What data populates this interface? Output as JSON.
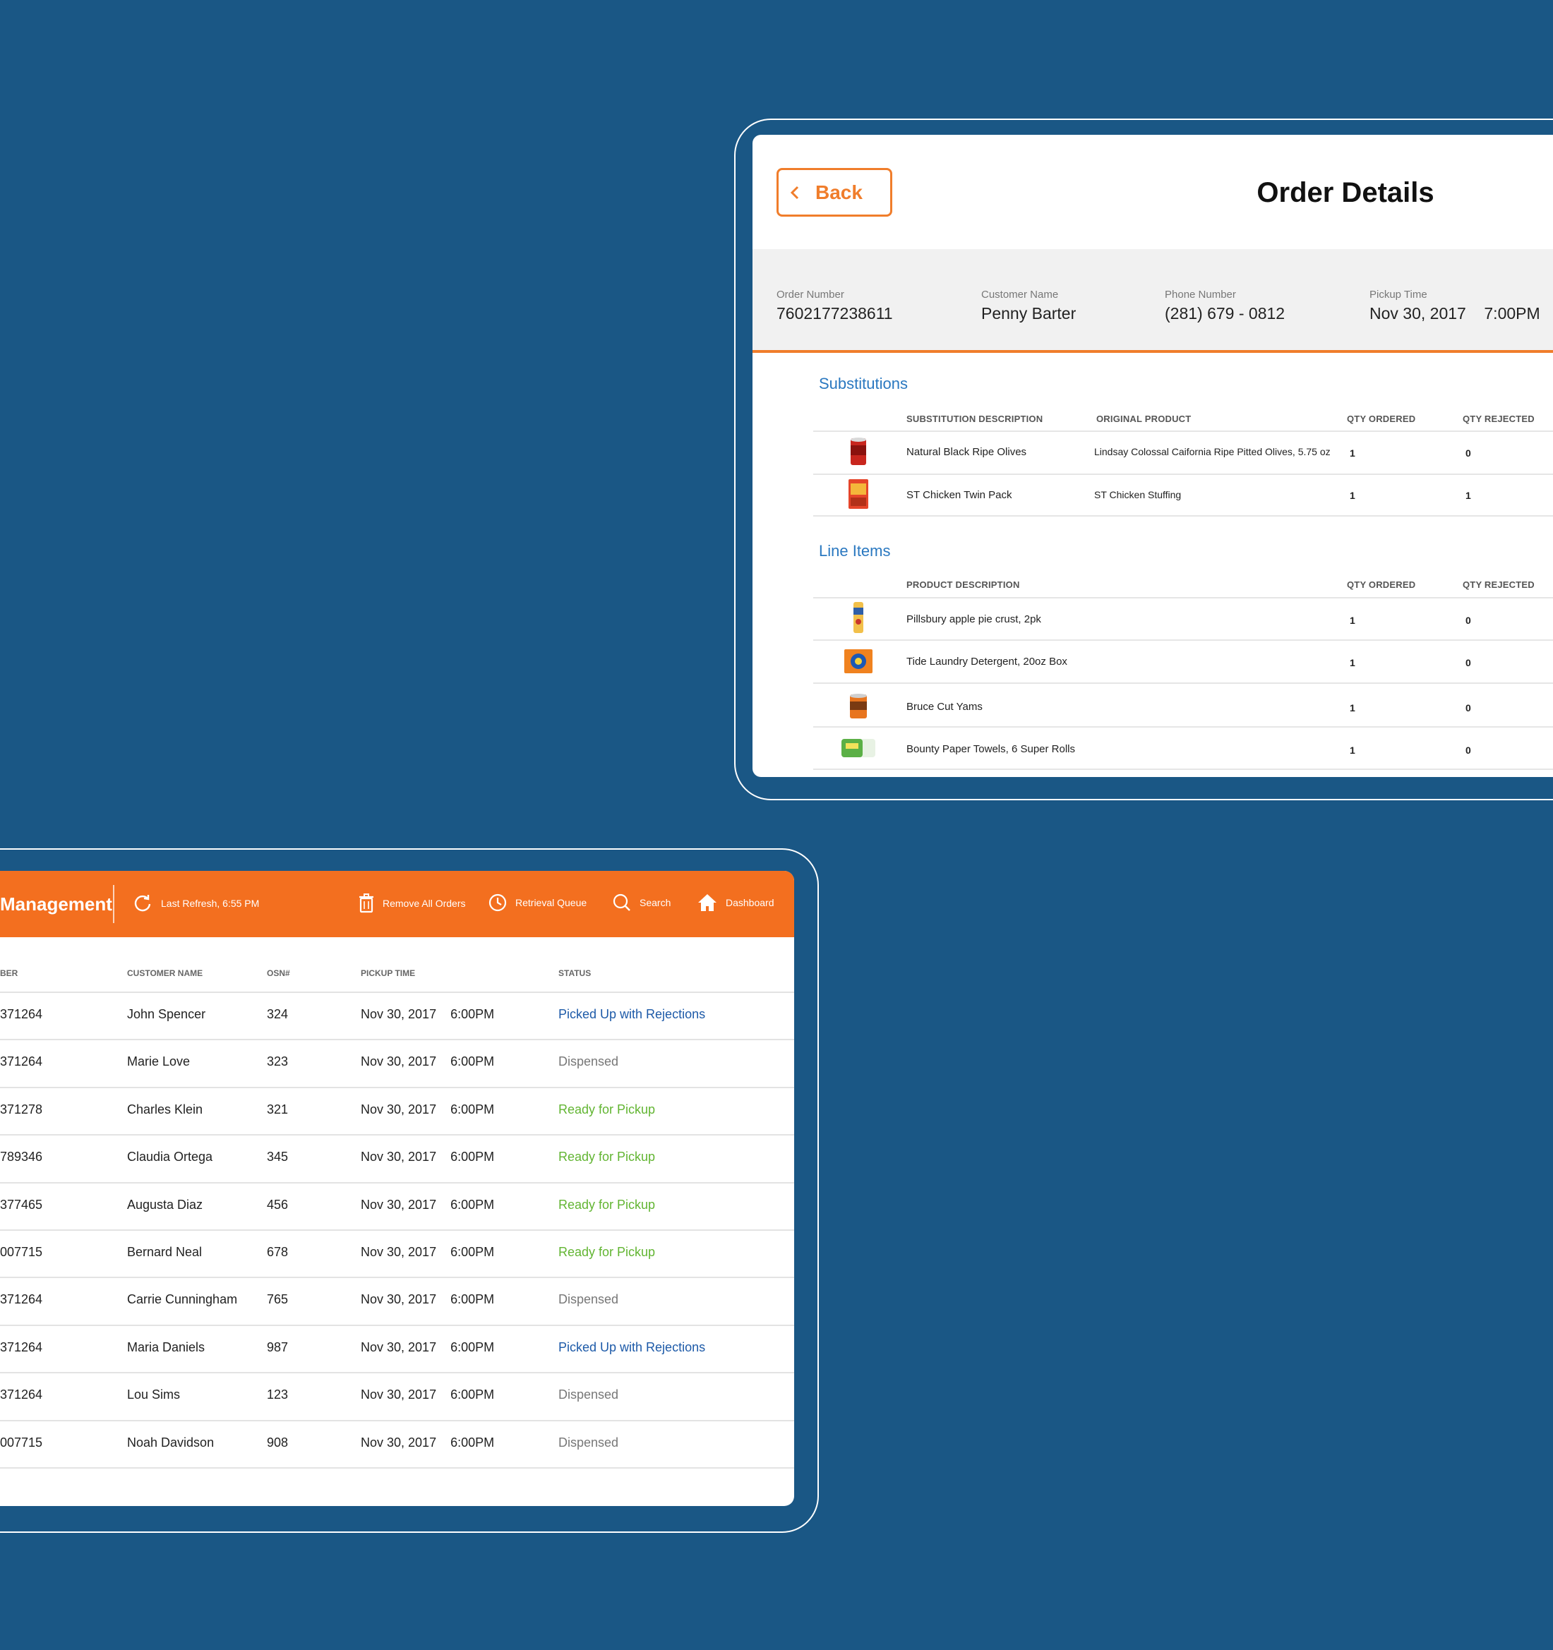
{
  "order_details": {
    "back_label": "Back",
    "title": "Order Details",
    "info": {
      "order_number_label": "Order Number",
      "order_number": "7602177238611",
      "customer_name_label": "Customer Name",
      "customer_name": "Penny Barter",
      "phone_label": "Phone Number",
      "phone": "(281) 679 - 0812",
      "pickup_label": "Pickup Time",
      "pickup": "Nov 30, 2017    7:00PM"
    },
    "substitutions": {
      "title": "Substitutions",
      "headers": [
        "SUBSTITUTION DESCRIPTION",
        "ORIGINAL PRODUCT",
        "QTY ORDERED",
        "QTY REJECTED"
      ],
      "rows": [
        {
          "description": "Natural Black Ripe Olives",
          "original": "Lindsay Colossal Caifornia Ripe Pitted Olives, 5.75 oz",
          "qty_ordered": "1",
          "qty_rejected": "0"
        },
        {
          "description": "ST Chicken Twin Pack",
          "original": "ST Chicken Stuffing",
          "qty_ordered": "1",
          "qty_rejected": "1"
        }
      ]
    },
    "line_items": {
      "title": "Line Items",
      "headers": [
        "PRODUCT DESCRIPTION",
        "QTY ORDERED",
        "QTY REJECTED"
      ],
      "rows": [
        {
          "description": "Pillsbury apple pie crust, 2pk",
          "qty_ordered": "1",
          "qty_rejected": "0"
        },
        {
          "description": "Tide Laundry Detergent, 20oz  Box",
          "qty_ordered": "1",
          "qty_rejected": "0"
        },
        {
          "description": "Bruce Cut Yams",
          "qty_ordered": "1",
          "qty_rejected": "0"
        },
        {
          "description": "Bounty Paper Towels, 6 Super Rolls",
          "qty_ordered": "1",
          "qty_rejected": "0"
        }
      ]
    }
  },
  "order_management": {
    "title": "Management",
    "last_refresh": "Last Refresh, 6:55 PM",
    "remove_all": "Remove All Orders",
    "retrieval_queue": "Retrieval Queue",
    "search": "Search",
    "dashboard": "Dashboard",
    "headers": {
      "number": "BER",
      "customer": "CUSTOMER NAME",
      "osn": "OSN#",
      "pickup": "PICKUP TIME",
      "status": "STATUS"
    },
    "rows": [
      {
        "number": "371264",
        "customer": "John Spencer",
        "osn": "324",
        "pickup": "Nov 30, 2017    6:00PM",
        "status": "Picked Up with Rejections"
      },
      {
        "number": "371264",
        "customer": "Marie Love",
        "osn": "323",
        "pickup": "Nov 30, 2017    6:00PM",
        "status": "Dispensed"
      },
      {
        "number": "371278",
        "customer": "Charles Klein",
        "osn": "321",
        "pickup": "Nov 30, 2017    6:00PM",
        "status": "Ready for Pickup"
      },
      {
        "number": "789346",
        "customer": "Claudia Ortega",
        "osn": "345",
        "pickup": "Nov 30, 2017    6:00PM",
        "status": "Ready for Pickup"
      },
      {
        "number": "377465",
        "customer": "Augusta Diaz",
        "osn": "456",
        "pickup": "Nov 30, 2017    6:00PM",
        "status": "Ready for Pickup"
      },
      {
        "number": "007715",
        "customer": "Bernard Neal",
        "osn": "678",
        "pickup": "Nov 30, 2017    6:00PM",
        "status": "Ready for Pickup"
      },
      {
        "number": "371264",
        "customer": "Carrie Cunningham",
        "osn": "765",
        "pickup": "Nov 30, 2017    6:00PM",
        "status": "Dispensed"
      },
      {
        "number": "371264",
        "customer": "Maria Daniels",
        "osn": "987",
        "pickup": "Nov 30, 2017    6:00PM",
        "status": "Picked Up with Rejections"
      },
      {
        "number": "371264",
        "customer": "Lou Sims",
        "osn": "123",
        "pickup": "Nov 30, 2017    6:00PM",
        "status": "Dispensed"
      },
      {
        "number": "007715",
        "customer": "Noah Davidson",
        "osn": "908",
        "pickup": "Nov 30, 2017    6:00PM",
        "status": "Dispensed"
      }
    ],
    "status_colors": {
      "Picked Up with Rejections": "#1d5aa8",
      "Dispensed": "#777777",
      "Ready for Pickup": "#62b532"
    }
  },
  "colors": {
    "background": "#1a5785",
    "accent": "#f36f1f",
    "section_title": "#2a78c0"
  }
}
